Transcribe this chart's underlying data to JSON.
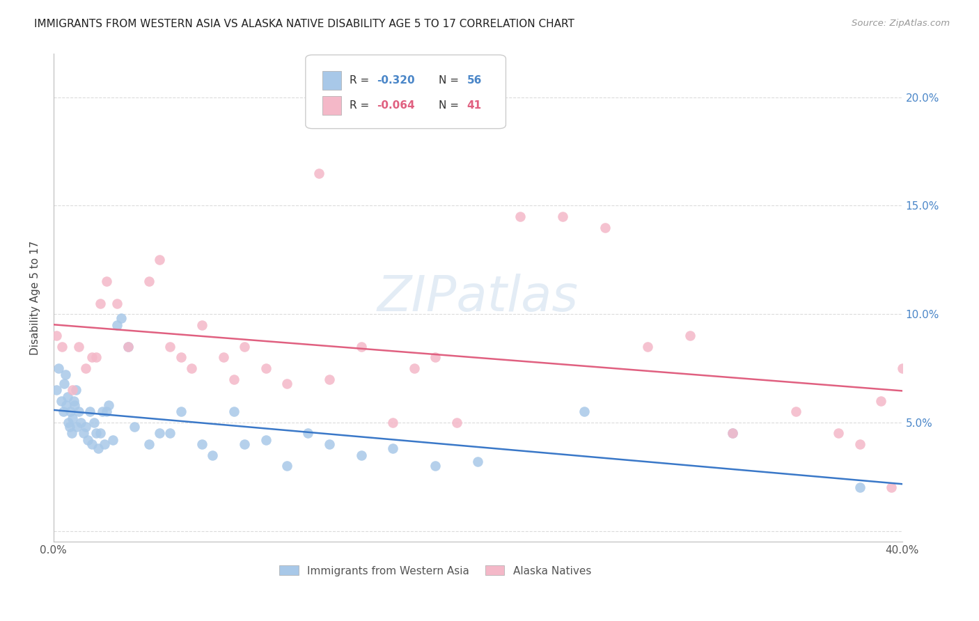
{
  "title": "IMMIGRANTS FROM WESTERN ASIA VS ALASKA NATIVE DISABILITY AGE 5 TO 17 CORRELATION CHART",
  "source": "Source: ZipAtlas.com",
  "ylabel": "Disability Age 5 to 17",
  "xlim": [
    0.0,
    40.0
  ],
  "ylim": [
    -0.5,
    22.0
  ],
  "blue_color": "#A8C8E8",
  "pink_color": "#F4B8C8",
  "blue_line_color": "#3A78C8",
  "pink_line_color": "#E06080",
  "watermark": "ZIPatlas",
  "blue_scatter_x": [
    0.15,
    0.25,
    0.35,
    0.45,
    0.5,
    0.55,
    0.6,
    0.65,
    0.7,
    0.75,
    0.8,
    0.85,
    0.9,
    0.95,
    1.0,
    1.05,
    1.1,
    1.2,
    1.3,
    1.4,
    1.5,
    1.6,
    1.7,
    1.8,
    1.9,
    2.0,
    2.1,
    2.2,
    2.3,
    2.4,
    2.5,
    2.6,
    2.8,
    3.0,
    3.2,
    3.5,
    3.8,
    4.5,
    5.0,
    5.5,
    6.0,
    7.0,
    7.5,
    8.5,
    9.0,
    10.0,
    11.0,
    12.0,
    13.0,
    14.5,
    16.0,
    18.0,
    20.0,
    25.0,
    32.0,
    38.0
  ],
  "blue_scatter_y": [
    6.5,
    7.5,
    6.0,
    5.5,
    6.8,
    7.2,
    5.8,
    6.2,
    5.0,
    4.8,
    5.5,
    4.5,
    5.2,
    6.0,
    5.8,
    6.5,
    4.8,
    5.5,
    5.0,
    4.5,
    4.8,
    4.2,
    5.5,
    4.0,
    5.0,
    4.5,
    3.8,
    4.5,
    5.5,
    4.0,
    5.5,
    5.8,
    4.2,
    9.5,
    9.8,
    8.5,
    4.8,
    4.0,
    4.5,
    4.5,
    5.5,
    4.0,
    3.5,
    5.5,
    4.0,
    4.2,
    3.0,
    4.5,
    4.0,
    3.5,
    3.8,
    3.0,
    3.2,
    5.5,
    4.5,
    2.0
  ],
  "pink_scatter_x": [
    0.15,
    0.4,
    0.9,
    1.2,
    1.5,
    1.8,
    2.0,
    2.2,
    2.5,
    3.0,
    3.5,
    4.5,
    5.0,
    5.5,
    6.0,
    6.5,
    7.0,
    8.0,
    8.5,
    9.0,
    10.0,
    11.0,
    12.5,
    13.0,
    14.5,
    16.0,
    17.0,
    18.0,
    19.0,
    22.0,
    24.0,
    26.0,
    28.0,
    30.0,
    32.0,
    35.0,
    37.0,
    38.0,
    39.0,
    39.5,
    40.0
  ],
  "pink_scatter_y": [
    9.0,
    8.5,
    6.5,
    8.5,
    7.5,
    8.0,
    8.0,
    10.5,
    11.5,
    10.5,
    8.5,
    11.5,
    12.5,
    8.5,
    8.0,
    7.5,
    9.5,
    8.0,
    7.0,
    8.5,
    7.5,
    6.8,
    16.5,
    7.0,
    8.5,
    5.0,
    7.5,
    8.0,
    5.0,
    14.5,
    14.5,
    14.0,
    8.5,
    9.0,
    4.5,
    5.5,
    4.5,
    4.0,
    6.0,
    2.0,
    7.5
  ]
}
